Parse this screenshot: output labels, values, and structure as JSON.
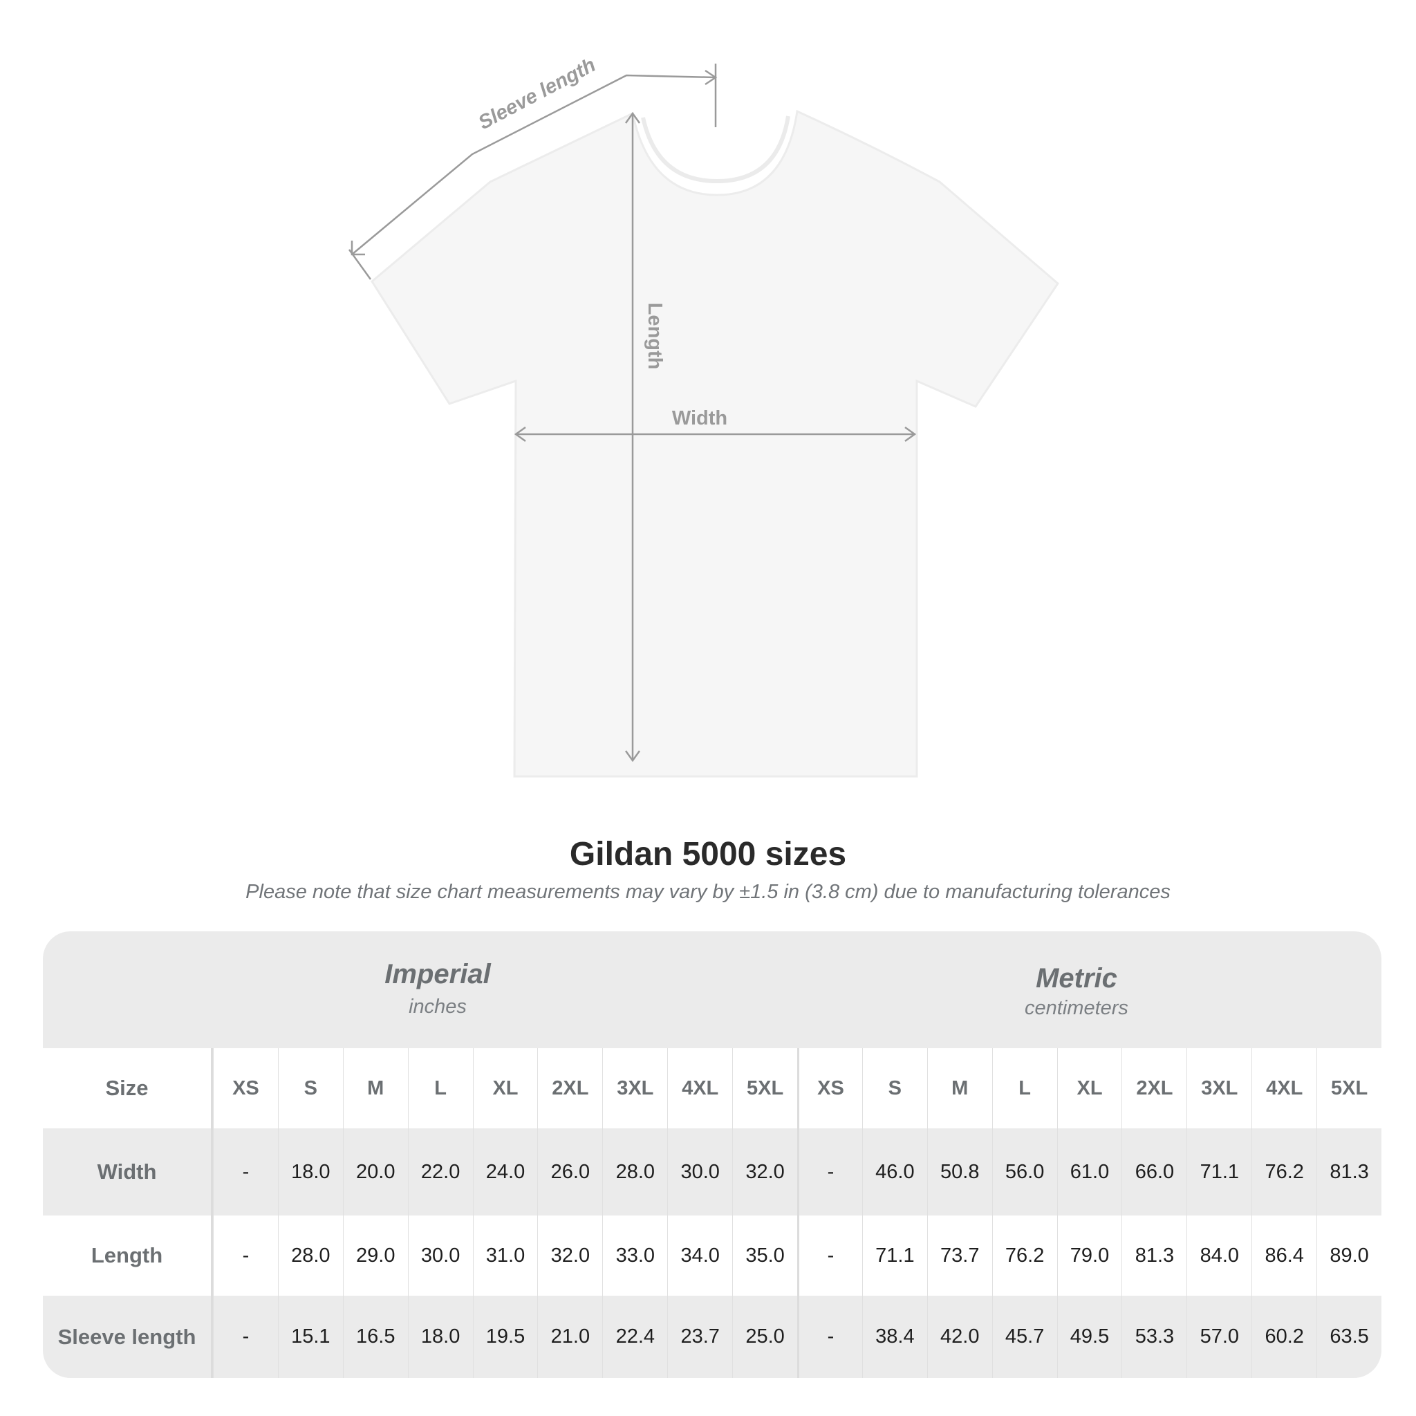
{
  "diagram": {
    "sleeve_label": "Sleeve length",
    "length_label": "Length",
    "width_label": "Width"
  },
  "title": "Gildan 5000 sizes",
  "note": "Please note that size chart measurements may vary by ±1.5 in (3.8 cm) due to manufacturing tolerances",
  "imperial": {
    "name": "Imperial",
    "unit": "inches"
  },
  "metric": {
    "name": "Metric",
    "unit": "centimeters"
  },
  "size_label": "Size",
  "sizes": [
    "XS",
    "S",
    "M",
    "L",
    "XL",
    "2XL",
    "3XL",
    "4XL",
    "5XL"
  ],
  "rows": [
    {
      "label": "Width",
      "imperial": [
        "-",
        "18.0",
        "20.0",
        "22.0",
        "24.0",
        "26.0",
        "28.0",
        "30.0",
        "32.0"
      ],
      "metric": [
        "-",
        "46.0",
        "50.8",
        "56.0",
        "61.0",
        "66.0",
        "71.1",
        "76.2",
        "81.3"
      ]
    },
    {
      "label": "Length",
      "imperial": [
        "-",
        "28.0",
        "29.0",
        "30.0",
        "31.0",
        "32.0",
        "33.0",
        "34.0",
        "35.0"
      ],
      "metric": [
        "-",
        "71.1",
        "73.7",
        "76.2",
        "79.0",
        "81.3",
        "84.0",
        "86.4",
        "89.0"
      ]
    },
    {
      "label": "Sleeve length",
      "imperial": [
        "-",
        "15.1",
        "16.5",
        "18.0",
        "19.5",
        "21.0",
        "22.4",
        "23.7",
        "25.0"
      ],
      "metric": [
        "-",
        "38.4",
        "42.0",
        "45.7",
        "49.5",
        "53.3",
        "57.0",
        "60.2",
        "63.5"
      ]
    }
  ],
  "colors": {
    "table_gray": "#ebebeb",
    "label_gray": "#6b6f72",
    "arrow_gray": "#999999"
  }
}
